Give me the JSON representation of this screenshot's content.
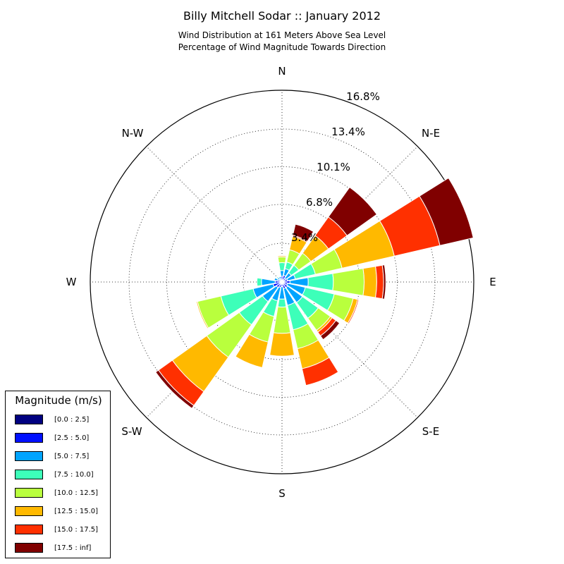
{
  "chart_data": {
    "type": "windrose",
    "title": "Billy Mitchell Sodar :: January 2012",
    "subtitle": "Wind Distribution at 161 Meters Above Sea Level",
    "subtitle2": "Percentage of Wind Magnitude Towards Direction",
    "directions": {
      "N": "N",
      "NE": "N-E",
      "E": "E",
      "SE": "S-E",
      "S": "S",
      "SW": "S-W",
      "W": "W",
      "NW": "N-W"
    },
    "radial_ticks": [
      "3.4%",
      "6.8%",
      "10.1%",
      "13.4%",
      "16.8%"
    ],
    "radial_max": 16.8,
    "grid": true,
    "legend": {
      "title": "Magnitude (m/s)",
      "placement": "bottom-left",
      "bins": [
        {
          "label": "[0.0 : 2.5]",
          "color": "#000080"
        },
        {
          "label": "[2.5 : 5.0]",
          "color": "#0010ff"
        },
        {
          "label": "[5.0 : 7.5]",
          "color": "#00a4ff"
        },
        {
          "label": "[7.5 : 10.0]",
          "color": "#3dffb9"
        },
        {
          "label": "[10.0 : 12.5]",
          "color": "#b9ff3d"
        },
        {
          "label": "[12.5 : 15.0]",
          "color": "#ffb900"
        },
        {
          "label": "[15.0 : 17.5]",
          "color": "#ff3000"
        },
        {
          "label": "[17.5 : inf]",
          "color": "#800000"
        }
      ]
    },
    "sector_directions_deg": [
      0,
      22.5,
      45,
      67.5,
      90,
      112.5,
      135,
      157.5,
      180,
      202.5,
      225,
      247.5,
      270,
      292.5,
      315,
      337.5
    ],
    "cumulative_percent": [
      [
        0.05,
        0.5,
        1.0,
        1.7,
        2.2,
        2.3,
        2.3,
        2.3
      ],
      [
        0.05,
        0.6,
        1.2,
        1.8,
        2.9,
        4.1,
        4.2,
        5.2
      ],
      [
        0.05,
        0.4,
        1.0,
        1.8,
        3.1,
        5.0,
        7.0,
        10.2
      ],
      [
        0.1,
        0.5,
        1.2,
        3.0,
        5.4,
        10.1,
        14.2,
        17.2
      ],
      [
        0.1,
        0.7,
        2.3,
        4.5,
        7.2,
        8.3,
        8.9,
        9.1
      ],
      [
        0.1,
        0.5,
        2.1,
        4.7,
        6.4,
        6.8,
        6.9,
        6.9
      ],
      [
        0.1,
        0.6,
        2.2,
        3.9,
        5.2,
        5.4,
        5.8,
        6.2
      ],
      [
        0.05,
        0.6,
        2.1,
        4.3,
        6.0,
        7.8,
        9.3,
        9.3
      ],
      [
        0.05,
        0.4,
        1.5,
        2.2,
        4.5,
        6.5,
        6.5,
        6.5
      ],
      [
        0.05,
        0.5,
        1.7,
        3.1,
        5.4,
        7.7,
        7.7,
        7.7
      ],
      [
        0.1,
        0.6,
        2.1,
        4.6,
        8.1,
        11.8,
        13.3,
        13.6
      ],
      [
        0.1,
        0.8,
        2.6,
        5.5,
        7.6,
        7.7,
        7.7,
        7.7
      ],
      [
        0.05,
        0.6,
        1.8,
        2.2,
        2.2,
        2.2,
        2.2,
        2.2
      ],
      [
        0.05,
        0.4,
        0.7,
        0.7,
        0.7,
        0.7,
        0.7,
        0.7
      ],
      [
        0.05,
        0.3,
        0.5,
        0.6,
        0.6,
        0.6,
        0.6,
        0.6
      ],
      [
        0.05,
        0.3,
        0.5,
        0.5,
        0.5,
        0.5,
        0.5,
        0.5
      ]
    ]
  }
}
